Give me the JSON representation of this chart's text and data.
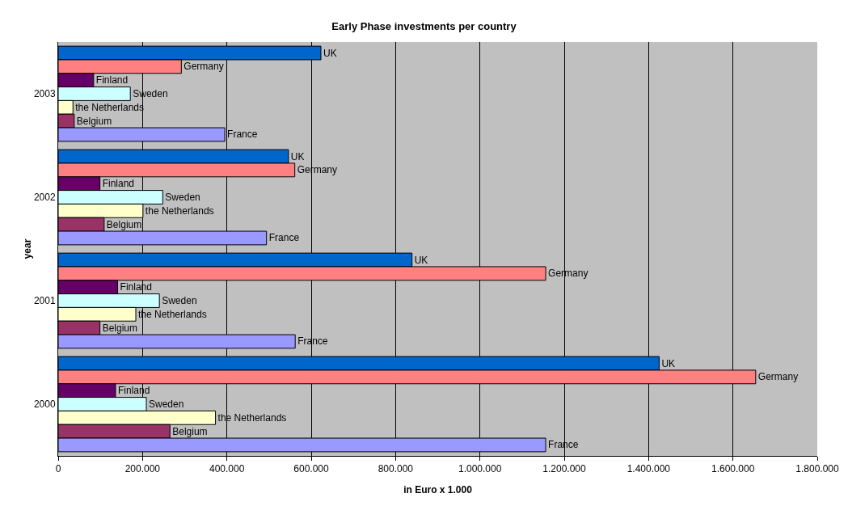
{
  "chart_data": {
    "type": "bar",
    "orientation": "horizontal",
    "title": "Early Phase investments per country",
    "xlabel": "in Euro x 1.000",
    "ylabel": "year",
    "categories": [
      "2003",
      "2002",
      "2001",
      "2000"
    ],
    "series": [
      {
        "name": "UK",
        "color": "#0066cc",
        "values": [
          623000,
          546000,
          839000,
          1425000
        ]
      },
      {
        "name": "Germany",
        "color": "#ff8080",
        "values": [
          292000,
          561000,
          1156000,
          1654000
        ]
      },
      {
        "name": "Finland",
        "color": "#660066",
        "values": [
          84000,
          99000,
          141000,
          136000
        ]
      },
      {
        "name": "Sweden",
        "color": "#ccffff",
        "values": [
          171000,
          248000,
          240000,
          209000
        ]
      },
      {
        "name": "the Netherlands",
        "color": "#ffffcc",
        "values": [
          35000,
          201000,
          184000,
          373000
        ]
      },
      {
        "name": "Belgium",
        "color": "#993366",
        "values": [
          38000,
          109000,
          99000,
          265000
        ]
      },
      {
        "name": "France",
        "color": "#9999ff",
        "values": [
          395000,
          494000,
          562000,
          1156000
        ]
      }
    ],
    "xlim": [
      0,
      1800000
    ],
    "xticks": [
      {
        "value": 0,
        "label": "0"
      },
      {
        "value": 200000,
        "label": "200.000"
      },
      {
        "value": 400000,
        "label": "400.000"
      },
      {
        "value": 600000,
        "label": "600.000"
      },
      {
        "value": 800000,
        "label": "800.000"
      },
      {
        "value": 1000000,
        "label": "1.000.000"
      },
      {
        "value": 1200000,
        "label": "1.200.000"
      },
      {
        "value": 1400000,
        "label": "1.400.000"
      },
      {
        "value": 1600000,
        "label": "1.600.000"
      },
      {
        "value": 1800000,
        "label": "1.800.000"
      }
    ],
    "grid": "x",
    "legend": false
  }
}
